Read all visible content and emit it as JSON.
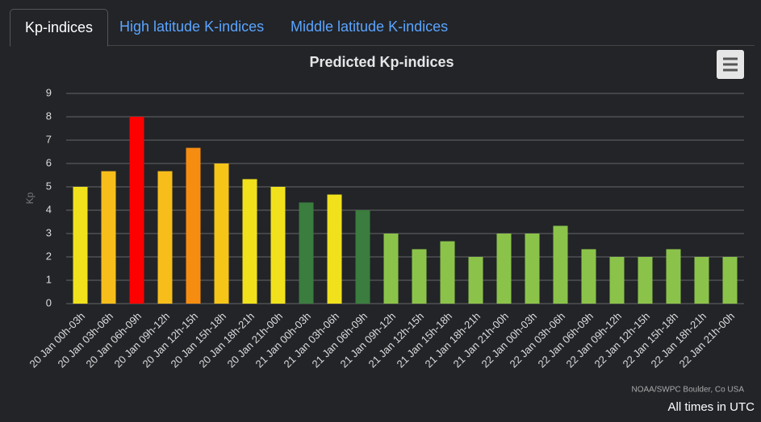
{
  "tabs": [
    "Kp-indices",
    "High latitude K-indices",
    "Middle latitude K-indices"
  ],
  "chart_data": {
    "type": "bar",
    "title": "Predicted Kp-indices",
    "y_label": "Kp",
    "categories": [
      "20 Jan 00h-03h",
      "20 Jan 03h-06h",
      "20 Jan 06h-09h",
      "20 Jan 09h-12h",
      "20 Jan 12h-15h",
      "20 Jan 15h-18h",
      "20 Jan 18h-21h",
      "20 Jan 21h-00h",
      "21 Jan 00h-03h",
      "21 Jan 03h-06h",
      "21 Jan 06h-09h",
      "21 Jan 09h-12h",
      "21 Jan 12h-15h",
      "21 Jan 15h-18h",
      "21 Jan 18h-21h",
      "21 Jan 21h-00h",
      "22 Jan 00h-03h",
      "22 Jan 03h-06h",
      "22 Jan 06h-09h",
      "22 Jan 09h-12h",
      "22 Jan 12h-15h",
      "22 Jan 15h-18h",
      "22 Jan 18h-21h",
      "22 Jan 21h-00h"
    ],
    "values": [
      5,
      5.67,
      8,
      5.67,
      6.67,
      6,
      5.33,
      5,
      4.33,
      4.67,
      4,
      3,
      2.33,
      2.67,
      2,
      3,
      3,
      3.33,
      2.33,
      2,
      2,
      2.33,
      2,
      2
    ],
    "colors": [
      "#f0e11c",
      "#f7be1b",
      "#ff0000",
      "#f7be1b",
      "#f68d10",
      "#f5c518",
      "#f0e11c",
      "#f0e11c",
      "#3a7d3e",
      "#f0e11c",
      "#3a7d3e",
      "#8bc34a",
      "#8bc34a",
      "#8bc34a",
      "#8bc34a",
      "#8bc34a",
      "#8bc34a",
      "#8bc34a",
      "#8bc34a",
      "#8bc34a",
      "#8bc34a",
      "#8bc34a",
      "#8bc34a",
      "#8bc34a"
    ],
    "ylim": [
      0,
      9
    ],
    "yticks": [
      0,
      1,
      2,
      3,
      4,
      5,
      6,
      7,
      8,
      9
    ],
    "grid": true,
    "credits": "NOAA/SWPC Boulder, Co USA"
  },
  "footer": "All times in UTC"
}
